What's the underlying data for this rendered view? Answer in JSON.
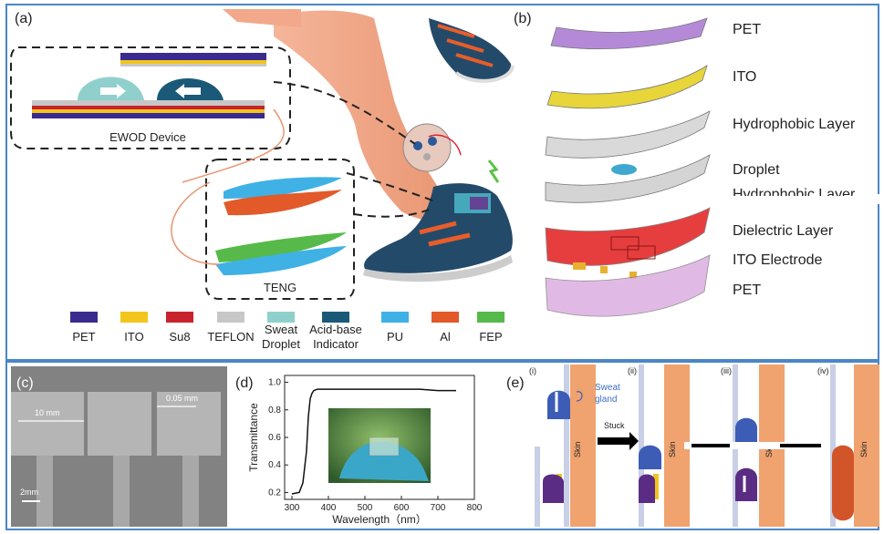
{
  "panels": {
    "a": "(a)",
    "b": "(b)",
    "c": "(c)",
    "d": "(d)",
    "e": "(e)"
  },
  "panel_a": {
    "ewod_label": "EWOD Device",
    "teng_label": "TENG",
    "legend": [
      {
        "label": "PET",
        "color": "#3a2b8f"
      },
      {
        "label": "ITO",
        "color": "#f2c51d"
      },
      {
        "label": "Su8",
        "color": "#c8232c"
      },
      {
        "label": "TEFLON",
        "color": "#c7c7c7"
      },
      {
        "label": "Sweat Droplet",
        "line1": "Sweat",
        "line2": "Droplet",
        "color": "#8fd0cc"
      },
      {
        "label": "Acid-base Indicator",
        "line1": "Acid-base",
        "line2": "Indicator",
        "color": "#1b5978"
      },
      {
        "label": "PU",
        "color": "#3fb1e5"
      },
      {
        "label": "Al",
        "color": "#e2592a"
      },
      {
        "label": "FEP",
        "color": "#57b94a"
      }
    ]
  },
  "panel_b": {
    "layers": [
      "PET",
      "ITO",
      "Hydrophobic Layer",
      "Droplet",
      "Hydrophobic Layer",
      "Dielectric Layer",
      "ITO Electrode",
      "PET"
    ]
  },
  "panel_c": {
    "dim1": "10 mm",
    "dim2": "0.05 mm",
    "scale": "2mm"
  },
  "panel_d": {
    "chart_data": {
      "type": "line",
      "xlabel": "Wavelength（nm）",
      "ylabel": "Transmittance",
      "xlim": [
        280,
        800
      ],
      "ylim": [
        0.15,
        1.05
      ],
      "xticks": [
        300,
        400,
        500,
        600,
        700,
        800
      ],
      "yticks": [
        0.2,
        0.4,
        0.6,
        0.8,
        1.0
      ],
      "x": [
        300,
        320,
        330,
        340,
        345,
        350,
        355,
        360,
        370,
        380,
        400,
        450,
        500,
        550,
        600,
        650,
        700,
        750
      ],
      "y": [
        0.19,
        0.2,
        0.27,
        0.5,
        0.75,
        0.88,
        0.92,
        0.94,
        0.95,
        0.95,
        0.95,
        0.95,
        0.95,
        0.95,
        0.95,
        0.95,
        0.94,
        0.94
      ]
    }
  },
  "panel_e": {
    "steps": [
      "(i)",
      "(ii)",
      "(iii)",
      "(iv)"
    ],
    "sweat_gland": "Sweat gland",
    "sweat_line1": "Sweat",
    "sweat_line2": "gland",
    "stuck": "Stuck",
    "skin": "Skin",
    "skin_colors": {
      "skin": "#f0a36f",
      "droplet": "#3c5cb5",
      "indicator": "#5b2c83",
      "electrode": "#f2c51d",
      "changed": "#d2552a"
    }
  }
}
